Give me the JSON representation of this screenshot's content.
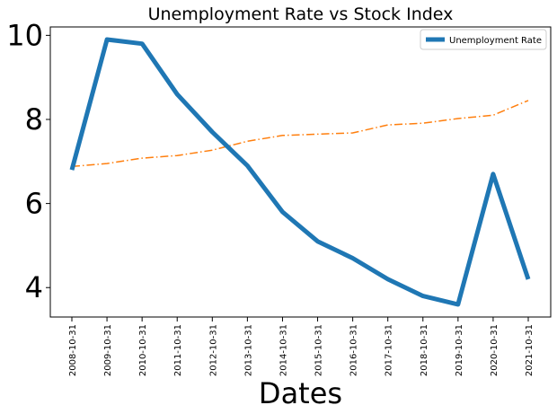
{
  "chart_data": {
    "type": "line",
    "title": "Unemployment Rate vs Stock Index",
    "xlabel": "Dates",
    "ylabel": "",
    "categories": [
      "2008-10-31",
      "2009-10-31",
      "2010-10-31",
      "2011-10-31",
      "2012-10-31",
      "2013-10-31",
      "2014-10-31",
      "2015-10-31",
      "2016-10-31",
      "2017-10-31",
      "2018-10-31",
      "2019-10-31",
      "2020-10-31",
      "2021-10-31"
    ],
    "ylim": [
      3.3,
      10.2
    ],
    "yticks": [
      4,
      6,
      8,
      10
    ],
    "grid": false,
    "legend_position": "top-right",
    "series": [
      {
        "name": "Unemployment Rate",
        "color": "#1f77b4",
        "style": "solid",
        "in_legend": true,
        "values": [
          6.8,
          9.9,
          9.8,
          8.6,
          7.7,
          6.9,
          5.8,
          5.1,
          4.7,
          4.2,
          3.8,
          3.6,
          6.7,
          4.2
        ]
      },
      {
        "name": "Stock Index",
        "color": "#ff7f0e",
        "style": "dashdot",
        "in_legend": false,
        "values": [
          6.88,
          6.95,
          7.08,
          7.14,
          7.27,
          7.48,
          7.62,
          7.65,
          7.68,
          7.87,
          7.91,
          8.02,
          8.1,
          8.45
        ]
      }
    ]
  }
}
